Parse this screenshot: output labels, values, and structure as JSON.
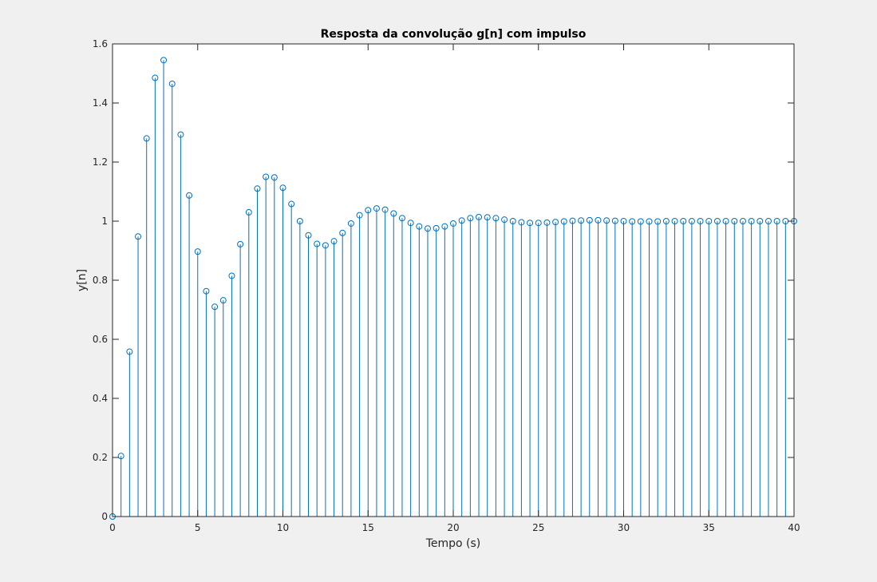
{
  "chart_data": {
    "type": "stem",
    "title": "Resposta da convolução g[n] com impulso",
    "xlabel": "Tempo (s)",
    "ylabel": "y[n]",
    "xlim": [
      0,
      40
    ],
    "ylim": [
      0,
      1.6
    ],
    "xticks": [
      0,
      5,
      10,
      15,
      20,
      25,
      30,
      35,
      40
    ],
    "yticks": [
      0,
      0.2,
      0.4,
      0.6,
      0.8,
      1,
      1.2,
      1.4,
      1.6
    ],
    "xtick_labels": [
      "0",
      "5",
      "10",
      "15",
      "20",
      "25",
      "30",
      "35",
      "40"
    ],
    "ytick_labels": [
      "0",
      "0.2",
      "0.4",
      "0.6",
      "0.8",
      "1",
      "1.2",
      "1.4",
      "1.6"
    ],
    "grid": false,
    "series_color": "#0072bd",
    "x": [
      0,
      0.5,
      1,
      1.5,
      2,
      2.5,
      3,
      3.5,
      4,
      4.5,
      5,
      5.5,
      6,
      6.5,
      7,
      7.5,
      8,
      8.5,
      9,
      9.5,
      10,
      10.5,
      11,
      11.5,
      12,
      12.5,
      13,
      13.5,
      14,
      14.5,
      15,
      15.5,
      16,
      16.5,
      17,
      17.5,
      18,
      18.5,
      19,
      19.5,
      20,
      20.5,
      21,
      21.5,
      22,
      22.5,
      23,
      23.5,
      24,
      24.5,
      25,
      25.5,
      26,
      26.5,
      27,
      27.5,
      28,
      28.5,
      29,
      29.5,
      30,
      30.5,
      31,
      31.5,
      32,
      32.5,
      33,
      33.5,
      34,
      34.5,
      35,
      35.5,
      36,
      36.5,
      37,
      37.5,
      38,
      38.5,
      39,
      39.5,
      40
    ],
    "y": [
      0,
      0.205,
      0.558,
      0.948,
      1.28,
      1.485,
      1.545,
      1.465,
      1.293,
      1.087,
      0.897,
      0.763,
      0.71,
      0.732,
      0.815,
      0.922,
      1.03,
      1.11,
      1.15,
      1.148,
      1.113,
      1.058,
      1.0,
      0.952,
      0.923,
      0.918,
      0.932,
      0.96,
      0.992,
      1.02,
      1.037,
      1.043,
      1.039,
      1.026,
      1.01,
      0.994,
      0.982,
      0.975,
      0.976,
      0.982,
      0.992,
      1.002,
      1.01,
      1.014,
      1.013,
      1.01,
      1.005,
      1.0,
      0.996,
      0.994,
      0.994,
      0.995,
      0.997,
      0.999,
      1.001,
      1.002,
      1.003,
      1.003,
      1.002,
      1.001,
      1.0,
      0.999,
      0.999,
      0.999,
      0.999,
      1.0,
      1.0,
      1.0,
      1.0,
      1.0,
      1.0,
      1.0,
      1.0,
      1.0,
      1.0,
      1.0,
      1.0,
      1.0,
      1.0,
      1.0,
      1.0
    ]
  }
}
